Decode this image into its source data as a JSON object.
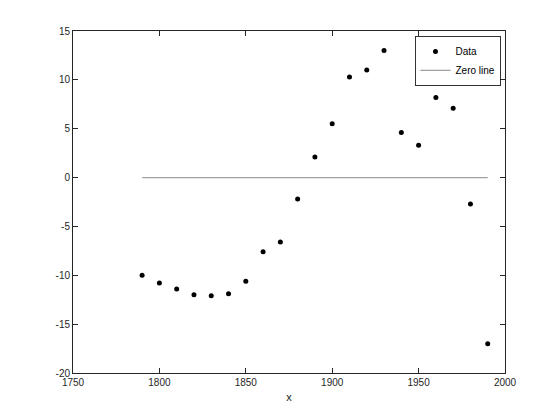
{
  "chart_data": {
    "type": "scatter",
    "x_label": "x",
    "series": [
      {
        "name": "Data",
        "type": "scatter",
        "marker": "dot",
        "color": "#000000",
        "x": [
          1790,
          1800,
          1810,
          1820,
          1830,
          1840,
          1850,
          1860,
          1870,
          1880,
          1890,
          1900,
          1910,
          1920,
          1930,
          1940,
          1950,
          1960,
          1970,
          1980,
          1990
        ],
        "values": [
          -10.0,
          -10.8,
          -11.4,
          -12.0,
          -12.1,
          -11.9,
          -10.6,
          -7.6,
          -6.6,
          -2.2,
          2.1,
          5.5,
          10.3,
          11.0,
          13.0,
          4.6,
          3.3,
          8.2,
          7.1,
          -2.7,
          -17.0
        ]
      },
      {
        "name": "Zero line",
        "type": "line",
        "line_style": "solid",
        "color": "#a0a0a0",
        "x": [
          1790,
          1990
        ],
        "values": [
          0,
          0
        ]
      }
    ],
    "xlim": [
      1750,
      2000
    ],
    "xticks": [
      1750,
      1800,
      1850,
      1900,
      1950,
      2000
    ],
    "ylim": [
      -20,
      15
    ],
    "yticks": [
      -20,
      -15,
      -10,
      -5,
      0,
      5,
      10,
      15
    ],
    "grid": false,
    "legend": "top right"
  }
}
